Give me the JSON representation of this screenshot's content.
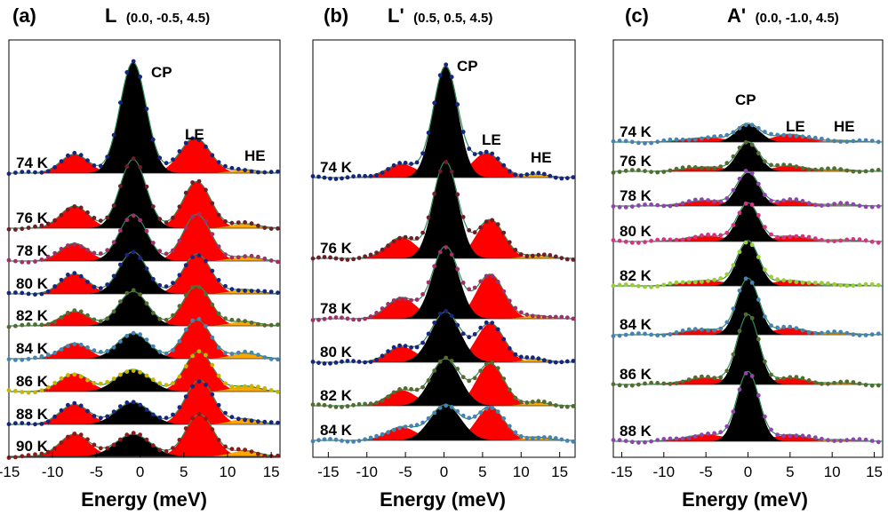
{
  "chart_data": [
    {
      "type": "line",
      "panel_label": "(a)",
      "point_label": "L",
      "coords": "(0.0, -0.5, 4.5)",
      "xlabel": "Energy (meV)",
      "xlim": [
        -15,
        16
      ],
      "xticks": [
        "-15",
        "-10",
        "-5",
        "0",
        "5",
        "10",
        "15"
      ],
      "annotations": [
        "CP",
        "LE",
        "HE"
      ],
      "components": [
        "CP",
        "LE",
        "HE"
      ],
      "component_colors": {
        "CP": "#000000",
        "LE": "#ff0000",
        "HE": "#ffa500",
        "fit": "#2e8b57"
      },
      "series": [
        {
          "name": "74 K",
          "point_color": "#1a237e",
          "peaks": {
            "neg": {
              "x": -7.5,
              "amp": 0.17,
              "w": 1.6
            },
            "cp": {
              "x": -0.8,
              "amp": 1.0,
              "w": 1.5
            },
            "le": {
              "x": 6.3,
              "amp": 0.32,
              "w": 1.7
            },
            "he": {
              "x": 12,
              "amp": 0.03,
              "w": 1.6
            }
          }
        },
        {
          "name": "76 K",
          "point_color": "#6b1f2a",
          "peaks": {
            "neg": {
              "x": -7.5,
              "amp": 0.2,
              "w": 1.6
            },
            "cp": {
              "x": -0.8,
              "amp": 0.62,
              "w": 1.5
            },
            "le": {
              "x": 6.5,
              "amp": 0.42,
              "w": 1.6
            },
            "he": {
              "x": 12,
              "amp": 0.04,
              "w": 1.6
            }
          }
        },
        {
          "name": "78 K",
          "point_color": "#a0306a",
          "peaks": {
            "neg": {
              "x": -7.5,
              "amp": 0.16,
              "w": 1.6
            },
            "cp": {
              "x": -0.8,
              "amp": 0.42,
              "w": 1.6
            },
            "le": {
              "x": 6.5,
              "amp": 0.42,
              "w": 1.6
            },
            "he": {
              "x": 12,
              "amp": 0.04,
              "w": 1.6
            }
          }
        },
        {
          "name": "80 K",
          "point_color": "#1a237e",
          "peaks": {
            "neg": {
              "x": -7.5,
              "amp": 0.18,
              "w": 1.6
            },
            "cp": {
              "x": -0.8,
              "amp": 0.38,
              "w": 1.6
            },
            "le": {
              "x": 6.5,
              "amp": 0.36,
              "w": 1.6
            },
            "he": {
              "x": 12,
              "amp": 0.04,
              "w": 1.6
            }
          }
        },
        {
          "name": "82 K",
          "point_color": "#556b2f",
          "peaks": {
            "neg": {
              "x": -7.5,
              "amp": 0.13,
              "w": 1.6
            },
            "cp": {
              "x": -0.8,
              "amp": 0.31,
              "w": 1.7
            },
            "le": {
              "x": 6.5,
              "amp": 0.36,
              "w": 1.6
            },
            "he": {
              "x": 12,
              "amp": 0.04,
              "w": 1.6
            }
          }
        },
        {
          "name": "84 K",
          "point_color": "#4682b4",
          "peaks": {
            "neg": {
              "x": -7.5,
              "amp": 0.14,
              "w": 1.6
            },
            "cp": {
              "x": -0.8,
              "amp": 0.23,
              "w": 1.8
            },
            "le": {
              "x": 6.5,
              "amp": 0.35,
              "w": 1.6
            },
            "he": {
              "x": 12,
              "amp": 0.05,
              "w": 1.6
            }
          }
        },
        {
          "name": "86 K",
          "point_color": "#c9b400",
          "peaks": {
            "neg": {
              "x": -7.5,
              "amp": 0.16,
              "w": 1.7
            },
            "cp": {
              "x": -0.8,
              "amp": 0.2,
              "w": 1.9
            },
            "le": {
              "x": 6.7,
              "amp": 0.36,
              "w": 1.6
            },
            "he": {
              "x": 12,
              "amp": 0.05,
              "w": 1.6
            }
          }
        },
        {
          "name": "88 K",
          "point_color": "#1a237e",
          "peaks": {
            "neg": {
              "x": -7.5,
              "amp": 0.18,
              "w": 1.7
            },
            "cp": {
              "x": -0.8,
              "amp": 0.2,
              "w": 1.9
            },
            "le": {
              "x": 6.8,
              "amp": 0.4,
              "w": 1.6
            },
            "he": {
              "x": 12,
              "amp": 0.05,
              "w": 1.6
            }
          }
        },
        {
          "name": "90 K",
          "point_color": "#8b1a1a",
          "peaks": {
            "neg": {
              "x": -7.5,
              "amp": 0.2,
              "w": 1.7
            },
            "cp": {
              "x": -0.8,
              "amp": 0.2,
              "w": 2.0
            },
            "le": {
              "x": 6.8,
              "amp": 0.38,
              "w": 1.6
            },
            "he": {
              "x": 12,
              "amp": 0.05,
              "w": 1.6
            }
          }
        }
      ]
    },
    {
      "type": "line",
      "panel_label": "(b)",
      "point_label": "L'",
      "coords": "(0.5, 0.5, 4.5)",
      "xlabel": "Energy (meV)",
      "xlim": [
        -17,
        17
      ],
      "xticks": [
        "-15",
        "-10",
        "-5",
        "0",
        "5",
        "10",
        "15"
      ],
      "annotations": [
        "CP",
        "LE",
        "HE"
      ],
      "components": [
        "CP",
        "LE",
        "HE"
      ],
      "component_colors": {
        "CP": "#000000",
        "LE": "#ff0000",
        "HE": "#ffa500",
        "fit": "#2e8b57"
      },
      "series": [
        {
          "name": "74 K",
          "point_color": "#1a237e",
          "peaks": {
            "neg": {
              "x": -5.5,
              "amp": 0.12,
              "w": 2.0
            },
            "cp": {
              "x": 0.2,
              "amp": 1.0,
              "w": 1.6
            },
            "le": {
              "x": 5.5,
              "amp": 0.22,
              "w": 1.9
            },
            "he": {
              "x": 12,
              "amp": 0.03,
              "w": 1.6
            }
          }
        },
        {
          "name": "76 K",
          "point_color": "#6b1f2a",
          "peaks": {
            "neg": {
              "x": -5.5,
              "amp": 0.19,
              "w": 1.9
            },
            "cp": {
              "x": 0.2,
              "amp": 0.87,
              "w": 1.6
            },
            "le": {
              "x": 6.0,
              "amp": 0.35,
              "w": 1.8
            },
            "he": {
              "x": 12,
              "amp": 0.03,
              "w": 1.6
            }
          }
        },
        {
          "name": "78 K",
          "point_color": "#a0306a",
          "peaks": {
            "neg": {
              "x": -5.5,
              "amp": 0.19,
              "w": 1.9
            },
            "cp": {
              "x": 0.2,
              "amp": 0.65,
              "w": 1.7
            },
            "le": {
              "x": 6.0,
              "amp": 0.4,
              "w": 1.8
            },
            "he": {
              "x": 12,
              "amp": 0.03,
              "w": 1.6
            }
          }
        },
        {
          "name": "80 K",
          "point_color": "#1a237e",
          "peaks": {
            "neg": {
              "x": -5.5,
              "amp": 0.14,
              "w": 1.9
            },
            "cp": {
              "x": 0.2,
              "amp": 0.45,
              "w": 1.9
            },
            "le": {
              "x": 6.0,
              "amp": 0.35,
              "w": 1.8
            },
            "he": {
              "x": 12,
              "amp": 0.03,
              "w": 1.6
            }
          }
        },
        {
          "name": "82 K",
          "point_color": "#556b2f",
          "peaks": {
            "neg": {
              "x": -5.5,
              "amp": 0.14,
              "w": 1.9
            },
            "cp": {
              "x": 0.2,
              "amp": 0.42,
              "w": 1.9
            },
            "le": {
              "x": 6.0,
              "amp": 0.38,
              "w": 1.8
            },
            "he": {
              "x": 12,
              "amp": 0.03,
              "w": 1.6
            }
          }
        },
        {
          "name": "84 K",
          "point_color": "#4682b4",
          "peaks": {
            "neg": {
              "x": -5.5,
              "amp": 0.12,
              "w": 1.9
            },
            "cp": {
              "x": 0.2,
              "amp": 0.32,
              "w": 2.0
            },
            "le": {
              "x": 6.0,
              "amp": 0.3,
              "w": 1.8
            },
            "he": {
              "x": 12,
              "amp": 0.03,
              "w": 1.6
            }
          }
        }
      ]
    },
    {
      "type": "line",
      "panel_label": "(c)",
      "point_label": "A'",
      "coords": "(0.0, -1.0, 4.5)",
      "xlabel": "Energy (meV)",
      "xlim": [
        -16,
        16
      ],
      "xticks": [
        "-15",
        "-10",
        "-5",
        "0",
        "5",
        "10",
        "15"
      ],
      "annotations": [
        "CP",
        "LE",
        "HE"
      ],
      "components": [
        "CP",
        "LE",
        "HE"
      ],
      "component_colors": {
        "CP": "#000000",
        "LE": "#ff0000",
        "HE": "#ffa500",
        "fit": "#2e8b57"
      },
      "series": [
        {
          "name": "74 K",
          "point_color": "#4682b4",
          "peaks": {
            "neg": {
              "x": -5.0,
              "amp": 0.04,
              "w": 2.5
            },
            "cp": {
              "x": 0.0,
              "amp": 0.16,
              "w": 1.4
            },
            "le": {
              "x": 5.0,
              "amp": 0.07,
              "w": 2.0
            },
            "he": {
              "x": 11,
              "amp": 0.015,
              "w": 1.8
            }
          }
        },
        {
          "name": "76 K",
          "point_color": "#556b2f",
          "peaks": {
            "neg": {
              "x": -5.0,
              "amp": 0.04,
              "w": 2.5
            },
            "cp": {
              "x": 0.0,
              "amp": 0.26,
              "w": 1.3
            },
            "le": {
              "x": 5.0,
              "amp": 0.05,
              "w": 2.0
            },
            "he": {
              "x": 11,
              "amp": 0.015,
              "w": 1.8
            }
          }
        },
        {
          "name": "78 K",
          "point_color": "#8e44ad",
          "peaks": {
            "neg": {
              "x": -5.0,
              "amp": 0.05,
              "w": 2.5
            },
            "cp": {
              "x": 0.0,
              "amp": 0.3,
              "w": 1.3
            },
            "le": {
              "x": 5.0,
              "amp": 0.05,
              "w": 2.0
            },
            "he": {
              "x": 11,
              "amp": 0.015,
              "w": 1.8
            }
          }
        },
        {
          "name": "80 K",
          "point_color": "#d63384",
          "peaks": {
            "neg": {
              "x": -5.0,
              "amp": 0.05,
              "w": 2.5
            },
            "cp": {
              "x": 0.0,
              "amp": 0.34,
              "w": 1.3
            },
            "le": {
              "x": 5.0,
              "amp": 0.05,
              "w": 2.0
            },
            "he": {
              "x": 11,
              "amp": 0.015,
              "w": 1.8
            }
          }
        },
        {
          "name": "82 K",
          "point_color": "#9acd32",
          "peaks": {
            "neg": {
              "x": -5.0,
              "amp": 0.05,
              "w": 2.5
            },
            "cp": {
              "x": 0.0,
              "amp": 0.4,
              "w": 1.3
            },
            "le": {
              "x": 5.0,
              "amp": 0.05,
              "w": 2.0
            },
            "he": {
              "x": 11,
              "amp": 0.015,
              "w": 1.8
            }
          }
        },
        {
          "name": "84 K",
          "point_color": "#4682b4",
          "peaks": {
            "neg": {
              "x": -5.0,
              "amp": 0.05,
              "w": 2.5
            },
            "cp": {
              "x": 0.0,
              "amp": 0.5,
              "w": 1.3
            },
            "le": {
              "x": 5.0,
              "amp": 0.06,
              "w": 2.0
            },
            "he": {
              "x": 11,
              "amp": 0.015,
              "w": 1.8
            }
          }
        },
        {
          "name": "86 K",
          "point_color": "#556b2f",
          "peaks": {
            "neg": {
              "x": -5.0,
              "amp": 0.06,
              "w": 2.5
            },
            "cp": {
              "x": 0.0,
              "amp": 0.62,
              "w": 1.3
            },
            "le": {
              "x": 5.0,
              "amp": 0.06,
              "w": 2.0
            },
            "he": {
              "x": 11,
              "amp": 0.015,
              "w": 1.8
            }
          }
        },
        {
          "name": "88 K",
          "point_color": "#8e44ad",
          "peaks": {
            "neg": {
              "x": -5.0,
              "amp": 0.06,
              "w": 2.5
            },
            "cp": {
              "x": 0.0,
              "amp": 0.62,
              "w": 1.3
            },
            "le": {
              "x": 5.0,
              "amp": 0.06,
              "w": 2.0
            },
            "he": {
              "x": 11,
              "amp": 0.015,
              "w": 1.8
            }
          }
        }
      ]
    }
  ]
}
